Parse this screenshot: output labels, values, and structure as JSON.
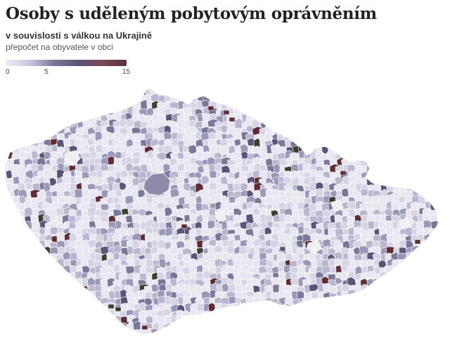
{
  "header": {
    "title": "Osoby s uděleným pobytovým oprávněním",
    "subtitle": "v souvislosti s válkou na Ukrajině",
    "note": "přepočet na obyvatele v obci"
  },
  "legend": {
    "ticks": [
      "0",
      "5",
      "15"
    ],
    "tick_values": [
      0,
      5,
      15
    ],
    "min": 0,
    "max": 15,
    "colors": [
      "#eeedf5",
      "#c9c7dd",
      "#7a7898",
      "#5a5478",
      "#7a4a5a",
      "#5e2c35"
    ]
  },
  "map": {
    "region": "Czech Republic municipalities",
    "no_data_pattern": "light crosshatch",
    "colors": {
      "border": "#ffffff",
      "low": "#e8e6f0",
      "mid": "#9a98b8",
      "high": "#5a5478",
      "max": "#5e2c35",
      "outlier": "#3a4030"
    }
  }
}
